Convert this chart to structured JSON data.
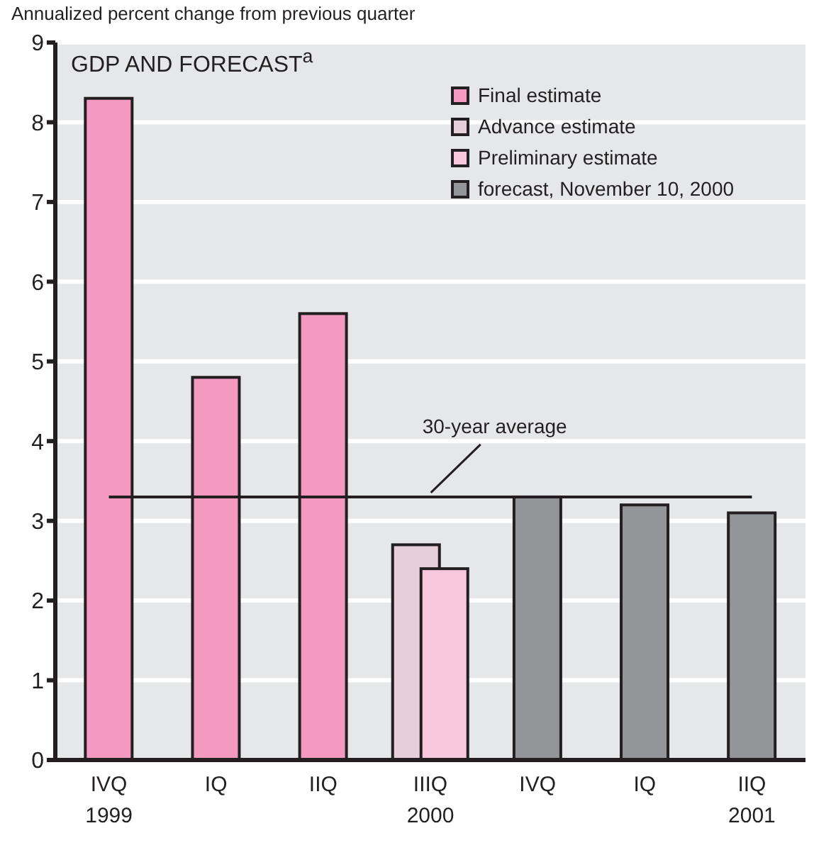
{
  "chart_data": {
    "type": "bar",
    "title": "GDP AND FORECAST$^{a}$",
    "ylabel": "Annualized percent change from previous quarter",
    "categories": [
      "IVQ\n1999",
      "IQ",
      "IIQ",
      "IIIQ\n2000",
      "IVQ",
      "IQ",
      "IIQ\n2001"
    ],
    "series": [
      {
        "name": "Final estimate",
        "color": "#f49ac1",
        "values": [
          8.3,
          4.8,
          5.6,
          null,
          null,
          null,
          null
        ]
      },
      {
        "name": "Advance estimate",
        "color": "#e6cfd9",
        "values": [
          null,
          null,
          null,
          2.7,
          null,
          null,
          null
        ]
      },
      {
        "name": "Preliminary estimate",
        "color": "#f7c8dc",
        "values": [
          null,
          null,
          null,
          2.4,
          null,
          null,
          null
        ]
      },
      {
        "name": "forecast, November 10, 2000",
        "color": "#939598",
        "values": [
          null,
          null,
          null,
          null,
          3.3,
          3.2,
          3.1
        ]
      }
    ],
    "ylim": [
      0,
      9
    ],
    "yticks": [
      0,
      1,
      2,
      3,
      4,
      5,
      6,
      7,
      8,
      9
    ],
    "grid": "y",
    "legend": "top right",
    "ref_lines": [
      {
        "axis": "y",
        "value": 3.3,
        "label": "30-year average",
        "color": "#231f20"
      }
    ]
  }
}
